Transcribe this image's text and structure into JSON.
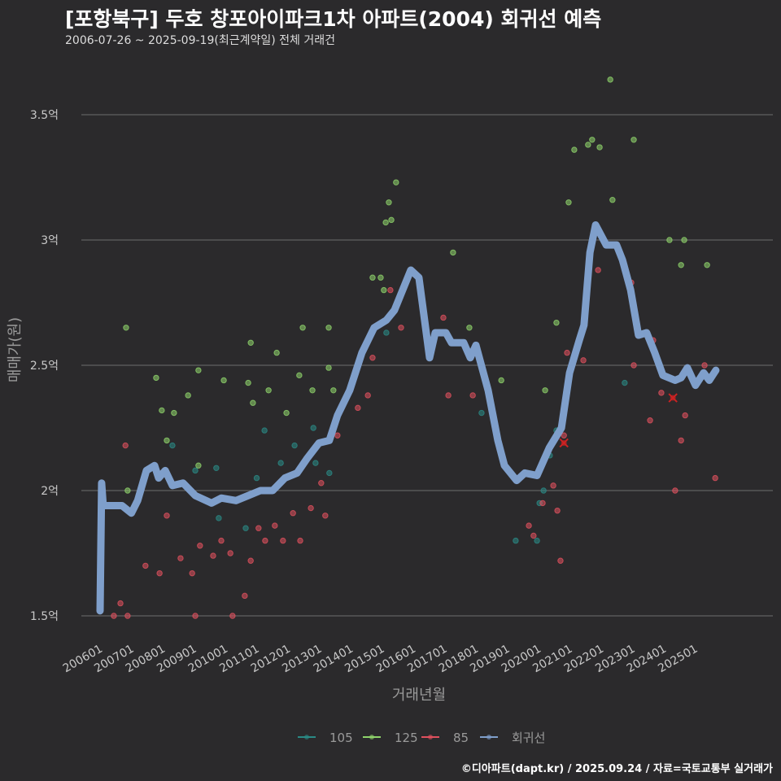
{
  "chart_data": {
    "type": "scatter",
    "title": "[포항북구] 두호 창포아이파크1차 아파트(2004) 회귀선 예측",
    "subtitle": "2006-07-26 ~ 2025-09-19(최근계약일) 전체 거래건",
    "xlabel": "거래년월",
    "ylabel": "매매가(원)",
    "ylim": [
      1.4,
      3.7
    ],
    "xlim": [
      2005.4,
      2026.3
    ],
    "y_ticks": [
      {
        "v": 1.5,
        "label": "1.5억"
      },
      {
        "v": 2,
        "label": "2억"
      },
      {
        "v": 2.5,
        "label": "2.5억"
      },
      {
        "v": 3,
        "label": "3억"
      },
      {
        "v": 3.5,
        "label": "3.5억"
      }
    ],
    "x_ticks": [
      "200601",
      "200701",
      "200801",
      "200901",
      "201001",
      "201101",
      "201201",
      "201301",
      "201401",
      "201501",
      "201601",
      "201701",
      "201801",
      "201901",
      "202001",
      "202101",
      "202201",
      "202301",
      "202401",
      "202501"
    ],
    "grid": true,
    "legend_position": "bottom",
    "colors": {
      "105": "#2a8a86",
      "125": "#8fd46b",
      "85": "#e0505e",
      "회귀선": "#7f9fcb",
      "marker": "#cc2222"
    },
    "series": [
      {
        "name": "105",
        "type": "scatter",
        "points": [
          [
            2008.31,
            2.18
          ],
          [
            2009.04,
            2.08
          ],
          [
            2009.71,
            2.09
          ],
          [
            2009.79,
            1.89
          ],
          [
            2010.65,
            1.85
          ],
          [
            2011.0,
            2.05
          ],
          [
            2011.25,
            2.24
          ],
          [
            2011.77,
            2.11
          ],
          [
            2012.21,
            2.18
          ],
          [
            2012.81,
            2.25
          ],
          [
            2012.88,
            2.11
          ],
          [
            2013.32,
            2.07
          ],
          [
            2015.14,
            2.63
          ],
          [
            2015.27,
            2.7
          ],
          [
            2018.18,
            2.31
          ],
          [
            2019.27,
            1.8
          ],
          [
            2019.95,
            1.8
          ],
          [
            2020.03,
            1.95
          ],
          [
            2020.16,
            2.0
          ],
          [
            2020.36,
            2.14
          ],
          [
            2020.57,
            2.24
          ],
          [
            2022.75,
            2.43
          ]
        ]
      },
      {
        "name": "125",
        "type": "scatter",
        "points": [
          [
            2006.83,
            2.65
          ],
          [
            2006.88,
            2.0
          ],
          [
            2007.79,
            2.45
          ],
          [
            2007.97,
            2.32
          ],
          [
            2008.13,
            2.2
          ],
          [
            2008.36,
            2.31
          ],
          [
            2008.81,
            2.38
          ],
          [
            2009.14,
            2.48
          ],
          [
            2009.14,
            2.1
          ],
          [
            2009.95,
            2.44
          ],
          [
            2010.81,
            2.59
          ],
          [
            2010.73,
            2.43
          ],
          [
            2010.88,
            2.35
          ],
          [
            2011.38,
            2.4
          ],
          [
            2011.64,
            2.55
          ],
          [
            2011.95,
            2.31
          ],
          [
            2012.36,
            2.46
          ],
          [
            2012.47,
            2.65
          ],
          [
            2012.78,
            2.4
          ],
          [
            2013.3,
            2.65
          ],
          [
            2013.3,
            2.49
          ],
          [
            2013.45,
            2.4
          ],
          [
            2014.7,
            2.85
          ],
          [
            2014.96,
            2.85
          ],
          [
            2015.06,
            2.8
          ],
          [
            2015.12,
            3.07
          ],
          [
            2015.22,
            3.15
          ],
          [
            2015.3,
            3.08
          ],
          [
            2015.45,
            3.23
          ],
          [
            2017.27,
            2.95
          ],
          [
            2017.79,
            2.65
          ],
          [
            2018.81,
            2.44
          ],
          [
            2020.21,
            2.4
          ],
          [
            2020.57,
            2.67
          ],
          [
            2020.96,
            3.15
          ],
          [
            2021.14,
            3.36
          ],
          [
            2021.58,
            3.38
          ],
          [
            2021.71,
            3.4
          ],
          [
            2021.95,
            3.37
          ],
          [
            2022.29,
            3.64
          ],
          [
            2022.36,
            3.16
          ],
          [
            2023.04,
            3.4
          ],
          [
            2024.18,
            3.0
          ],
          [
            2024.55,
            2.9
          ],
          [
            2024.65,
            3.0
          ],
          [
            2025.38,
            2.9
          ]
        ]
      },
      {
        "name": "85",
        "type": "scatter",
        "points": [
          [
            2006.44,
            1.5
          ],
          [
            2006.65,
            1.55
          ],
          [
            2006.81,
            2.18
          ],
          [
            2006.88,
            1.5
          ],
          [
            2007.45,
            1.7
          ],
          [
            2007.9,
            1.67
          ],
          [
            2008.13,
            1.9
          ],
          [
            2008.57,
            1.73
          ],
          [
            2008.94,
            1.67
          ],
          [
            2009.04,
            1.5
          ],
          [
            2009.19,
            1.78
          ],
          [
            2009.61,
            1.74
          ],
          [
            2009.87,
            1.8
          ],
          [
            2010.23,
            1.5
          ],
          [
            2010.16,
            1.75
          ],
          [
            2010.62,
            1.58
          ],
          [
            2010.81,
            1.72
          ],
          [
            2011.06,
            1.85
          ],
          [
            2011.27,
            1.8
          ],
          [
            2011.58,
            1.86
          ],
          [
            2011.84,
            1.8
          ],
          [
            2012.16,
            1.91
          ],
          [
            2012.39,
            1.8
          ],
          [
            2012.73,
            1.93
          ],
          [
            2013.06,
            2.03
          ],
          [
            2013.19,
            1.9
          ],
          [
            2013.58,
            2.22
          ],
          [
            2014.23,
            2.33
          ],
          [
            2014.55,
            2.38
          ],
          [
            2014.7,
            2.53
          ],
          [
            2014.91,
            2.66
          ],
          [
            2015.27,
            2.8
          ],
          [
            2015.61,
            2.65
          ],
          [
            2016.96,
            2.69
          ],
          [
            2017.12,
            2.38
          ],
          [
            2017.9,
            2.38
          ],
          [
            2019.69,
            1.86
          ],
          [
            2019.84,
            1.82
          ],
          [
            2020.13,
            1.95
          ],
          [
            2020.47,
            2.02
          ],
          [
            2020.6,
            1.92
          ],
          [
            2020.7,
            1.72
          ],
          [
            2020.81,
            2.22
          ],
          [
            2020.91,
            2.55
          ],
          [
            2021.43,
            2.52
          ],
          [
            2021.9,
            2.88
          ],
          [
            2022.96,
            2.83
          ],
          [
            2023.04,
            2.5
          ],
          [
            2023.56,
            2.28
          ],
          [
            2023.66,
            2.6
          ],
          [
            2023.92,
            2.39
          ],
          [
            2024.36,
            2.0
          ],
          [
            2024.55,
            2.2
          ],
          [
            2024.68,
            2.3
          ],
          [
            2025.3,
            2.5
          ],
          [
            2025.64,
            2.05
          ]
        ]
      },
      {
        "name": "회귀선",
        "type": "line",
        "points": [
          [
            2006.0,
            1.52
          ],
          [
            2006.05,
            2.03
          ],
          [
            2006.1,
            1.94
          ],
          [
            2006.7,
            1.94
          ],
          [
            2007.0,
            1.91
          ],
          [
            2007.2,
            1.96
          ],
          [
            2007.48,
            2.08
          ],
          [
            2007.74,
            2.1
          ],
          [
            2007.87,
            2.05
          ],
          [
            2008.08,
            2.08
          ],
          [
            2008.31,
            2.02
          ],
          [
            2008.65,
            2.03
          ],
          [
            2009.04,
            1.98
          ],
          [
            2009.56,
            1.95
          ],
          [
            2009.87,
            1.97
          ],
          [
            2010.34,
            1.96
          ],
          [
            2010.73,
            1.98
          ],
          [
            2011.12,
            2.0
          ],
          [
            2011.51,
            2.0
          ],
          [
            2011.9,
            2.05
          ],
          [
            2012.29,
            2.07
          ],
          [
            2012.62,
            2.13
          ],
          [
            2012.99,
            2.19
          ],
          [
            2013.32,
            2.2
          ],
          [
            2013.58,
            2.3
          ],
          [
            2013.97,
            2.4
          ],
          [
            2014.36,
            2.55
          ],
          [
            2014.75,
            2.65
          ],
          [
            2015.14,
            2.68
          ],
          [
            2015.4,
            2.72
          ],
          [
            2015.66,
            2.8
          ],
          [
            2015.92,
            2.88
          ],
          [
            2016.18,
            2.85
          ],
          [
            2016.52,
            2.53
          ],
          [
            2016.7,
            2.63
          ],
          [
            2017.04,
            2.63
          ],
          [
            2017.22,
            2.59
          ],
          [
            2017.61,
            2.59
          ],
          [
            2017.82,
            2.53
          ],
          [
            2018.0,
            2.58
          ],
          [
            2018.39,
            2.4
          ],
          [
            2018.7,
            2.2
          ],
          [
            2018.91,
            2.1
          ],
          [
            2019.3,
            2.04
          ],
          [
            2019.56,
            2.07
          ],
          [
            2019.95,
            2.06
          ],
          [
            2020.34,
            2.17
          ],
          [
            2020.73,
            2.25
          ],
          [
            2020.99,
            2.47
          ],
          [
            2021.3,
            2.6
          ],
          [
            2021.45,
            2.66
          ],
          [
            2021.64,
            2.95
          ],
          [
            2021.82,
            3.06
          ],
          [
            2022.16,
            2.98
          ],
          [
            2022.49,
            2.98
          ],
          [
            2022.68,
            2.92
          ],
          [
            2022.94,
            2.8
          ],
          [
            2023.19,
            2.62
          ],
          [
            2023.45,
            2.63
          ],
          [
            2023.71,
            2.55
          ],
          [
            2023.97,
            2.46
          ],
          [
            2024.36,
            2.44
          ],
          [
            2024.55,
            2.45
          ],
          [
            2024.75,
            2.49
          ],
          [
            2025.01,
            2.42
          ],
          [
            2025.27,
            2.47
          ],
          [
            2025.45,
            2.44
          ],
          [
            2025.66,
            2.48
          ]
        ]
      }
    ],
    "highlight_markers": [
      [
        2020.81,
        2.19
      ],
      [
        2024.29,
        2.37
      ]
    ]
  },
  "credit": "©디아파트(dapt.kr) / 2025.09.24 / 자료=국토교통부 실거래가"
}
